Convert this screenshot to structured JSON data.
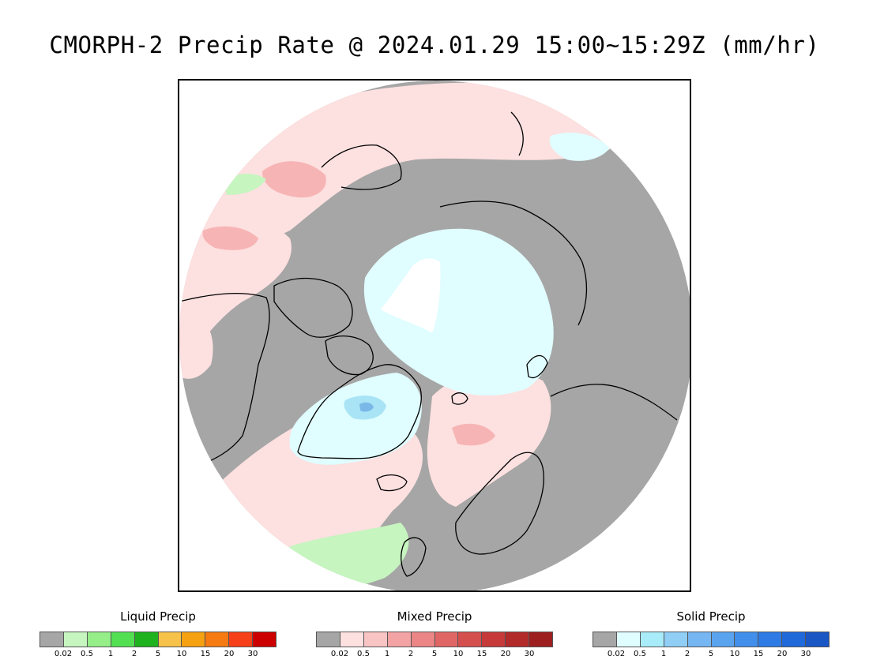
{
  "title": "CMORPH-2 Precip Rate @ 2024.01.29 15:00~15:29Z (mm/hr)",
  "map": {
    "projection": "north-polar-stereographic",
    "colors": {
      "no_precip": "#a6a6a6",
      "liquid_light": "#c6f5c0",
      "mixed_light": "#fde0e0",
      "mixed_medium": "#f7b4b4",
      "solid_light": "#e0fdff",
      "solid_medium": "#a8e4f5",
      "solid_heavy": "#7ab8e8",
      "coastline": "#000000"
    }
  },
  "legends": [
    {
      "title": "Liquid Precip",
      "colors": [
        "#a6a6a6",
        "#c6f5c0",
        "#95ee88",
        "#52e052",
        "#1fb21f",
        "#f7c24a",
        "#f5a111",
        "#f57a11",
        "#f5401a",
        "#cc0000"
      ],
      "ticks": [
        "0.02",
        "0.5",
        "1",
        "2",
        "5",
        "10",
        "15",
        "20",
        "30"
      ]
    },
    {
      "title": "Mixed Precip",
      "colors": [
        "#a6a6a6",
        "#fde0e0",
        "#f9c4c4",
        "#f3a3a3",
        "#ec8585",
        "#e06666",
        "#d54f4f",
        "#c73a3a",
        "#b22a2a",
        "#9e1f1f"
      ],
      "ticks": [
        "0.02",
        "0.5",
        "1",
        "2",
        "5",
        "10",
        "15",
        "20",
        "30"
      ]
    },
    {
      "title": "Solid Precip",
      "colors": [
        "#a6a6a6",
        "#e0fdff",
        "#a8ecfa",
        "#90cef6",
        "#75b6f3",
        "#5aa3ef",
        "#418fea",
        "#2e7be5",
        "#1f69db",
        "#1a56c4"
      ],
      "ticks": [
        "0.02",
        "0.5",
        "1",
        "2",
        "5",
        "10",
        "15",
        "20",
        "30"
      ]
    }
  ]
}
